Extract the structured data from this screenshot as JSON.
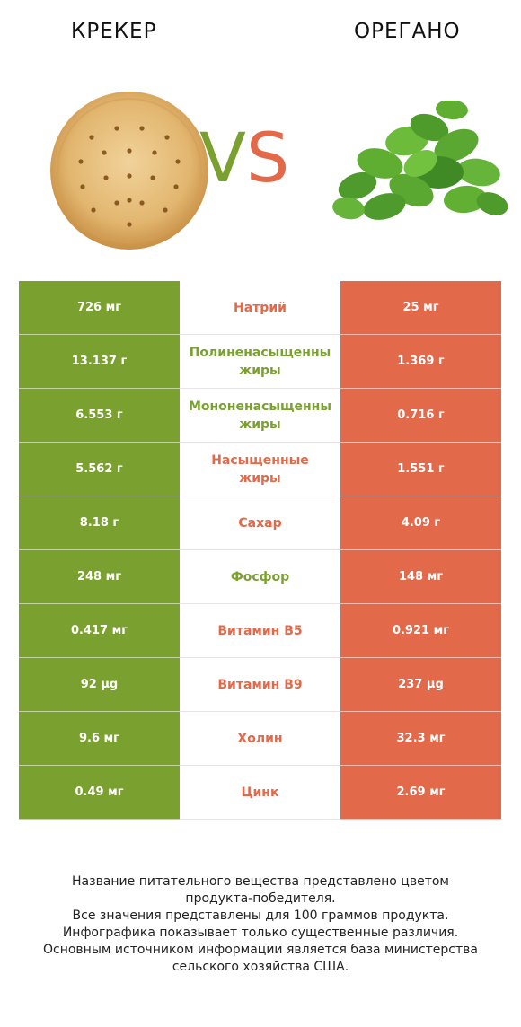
{
  "header": {
    "left_title": "КРЕКЕР",
    "right_title": "ОРЕГАНО",
    "vs_v": "V",
    "vs_s": "S"
  },
  "colors": {
    "left": "#7aa130",
    "right": "#e2694a"
  },
  "rows": [
    {
      "left": "726 мг",
      "nutrient": "Натрий",
      "right": "25 мг",
      "winner": "right"
    },
    {
      "left": "13.137 г",
      "nutrient": "Полиненасыщенны\nжиры",
      "right": "1.369 г",
      "winner": "left"
    },
    {
      "left": "6.553 г",
      "nutrient": "Мононенасыщенны\nжиры",
      "right": "0.716 г",
      "winner": "left"
    },
    {
      "left": "5.562 г",
      "nutrient": "Насыщенные\nжиры",
      "right": "1.551 г",
      "winner": "right"
    },
    {
      "left": "8.18 г",
      "nutrient": "Сахар",
      "right": "4.09 г",
      "winner": "right"
    },
    {
      "left": "248 мг",
      "nutrient": "Фосфор",
      "right": "148 мг",
      "winner": "left"
    },
    {
      "left": "0.417 мг",
      "nutrient": "Витамин B5",
      "right": "0.921 мг",
      "winner": "right"
    },
    {
      "left": "92 µg",
      "nutrient": "Витамин B9",
      "right": "237 µg",
      "winner": "right"
    },
    {
      "left": "9.6 мг",
      "nutrient": "Холин",
      "right": "32.3 мг",
      "winner": "right"
    },
    {
      "left": "0.49 мг",
      "nutrient": "Цинк",
      "right": "2.69 мг",
      "winner": "right"
    }
  ],
  "footer": {
    "line1": "Название питательного вещества представлено цветом",
    "line2": "продукта-победителя.",
    "line3": "Все значения представлены для 100 граммов продукта.",
    "line4": "Инфографика показывает только существенные различия.",
    "line5": "Основным источником информации является база министерства",
    "line6": "сельского хозяйства США."
  }
}
